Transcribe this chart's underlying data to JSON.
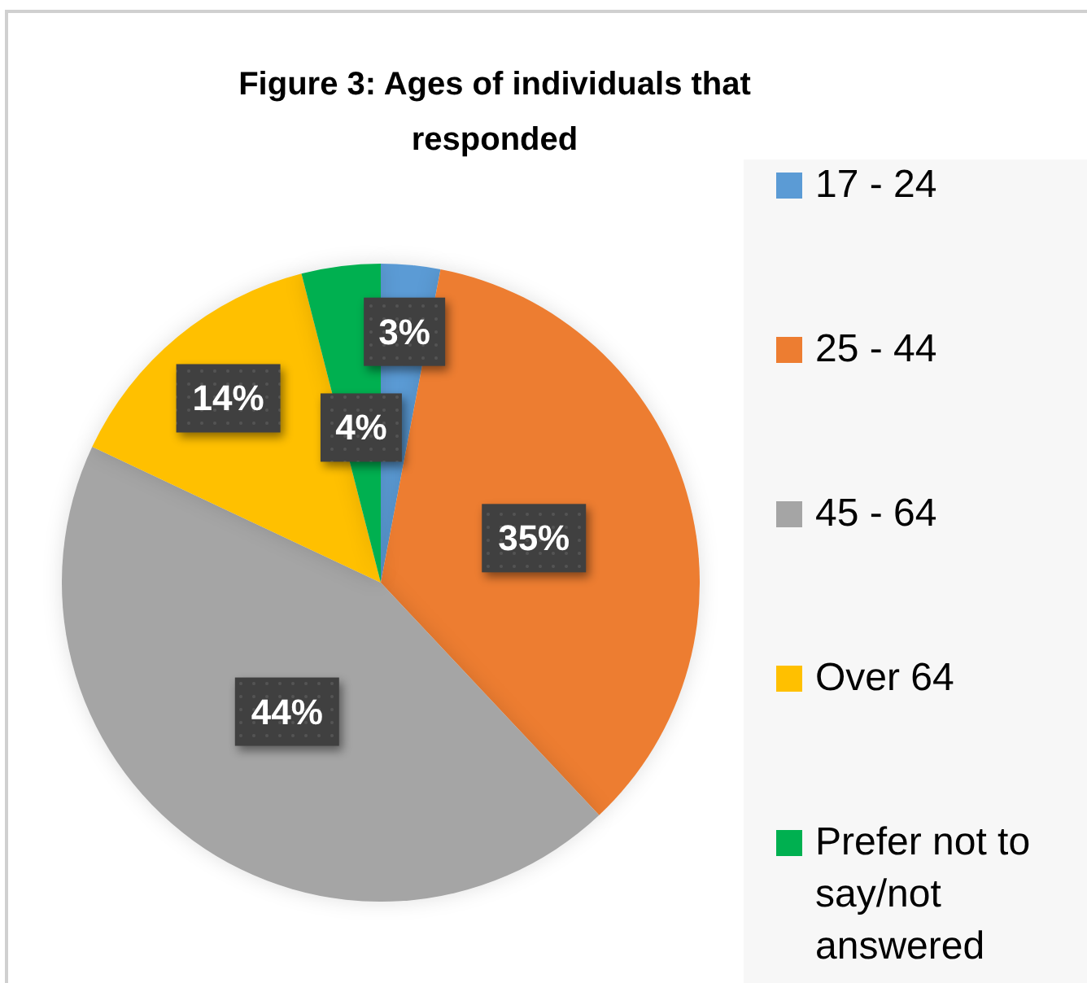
{
  "chart_data": {
    "type": "pie",
    "title": "Figure 3: Ages of individuals that responded",
    "categories": [
      "17 - 24",
      "25 - 44",
      "45 - 64",
      "Over 64",
      "Prefer not to say/not answered"
    ],
    "values": [
      3,
      35,
      44,
      14,
      4
    ],
    "colors": [
      "#5b9bd5",
      "#ed7d31",
      "#a5a5a5",
      "#ffc000",
      "#00b050"
    ],
    "value_labels": [
      "3%",
      "35%",
      "44%",
      "14%",
      "4%"
    ],
    "legend": "right"
  }
}
